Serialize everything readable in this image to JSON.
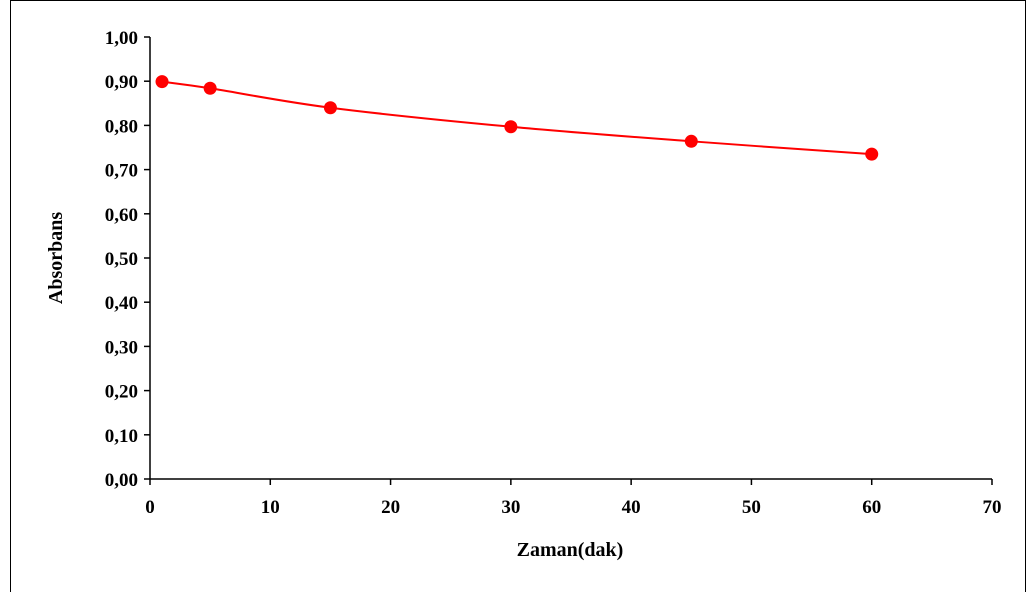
{
  "chart_data": {
    "type": "line",
    "title": "",
    "xlabel": "Zaman(dak)",
    "ylabel": "Absorbans",
    "xlim": [
      0,
      70
    ],
    "ylim": [
      0,
      1.0
    ],
    "x_ticks": [
      0,
      10,
      20,
      30,
      40,
      50,
      60,
      70
    ],
    "x_tick_labels": [
      "0",
      "10",
      "20",
      "30",
      "40",
      "50",
      "60",
      "70"
    ],
    "y_ticks": [
      0,
      0.1,
      0.2,
      0.3,
      0.4,
      0.5,
      0.6,
      0.7,
      0.8,
      0.9,
      1.0
    ],
    "y_tick_labels": [
      "0,00",
      "0,10",
      "0,20",
      "0,30",
      "0,40",
      "0,50",
      "0,60",
      "0,70",
      "0,80",
      "0,90",
      "1,00"
    ],
    "grid": false,
    "legend": "none",
    "series": [
      {
        "color": "#ff0000",
        "marker": "circle",
        "smooth": true,
        "x": [
          1,
          5,
          15,
          30,
          45,
          60
        ],
        "y": [
          0.899,
          0.884,
          0.84,
          0.797,
          0.764,
          0.735
        ]
      }
    ]
  }
}
